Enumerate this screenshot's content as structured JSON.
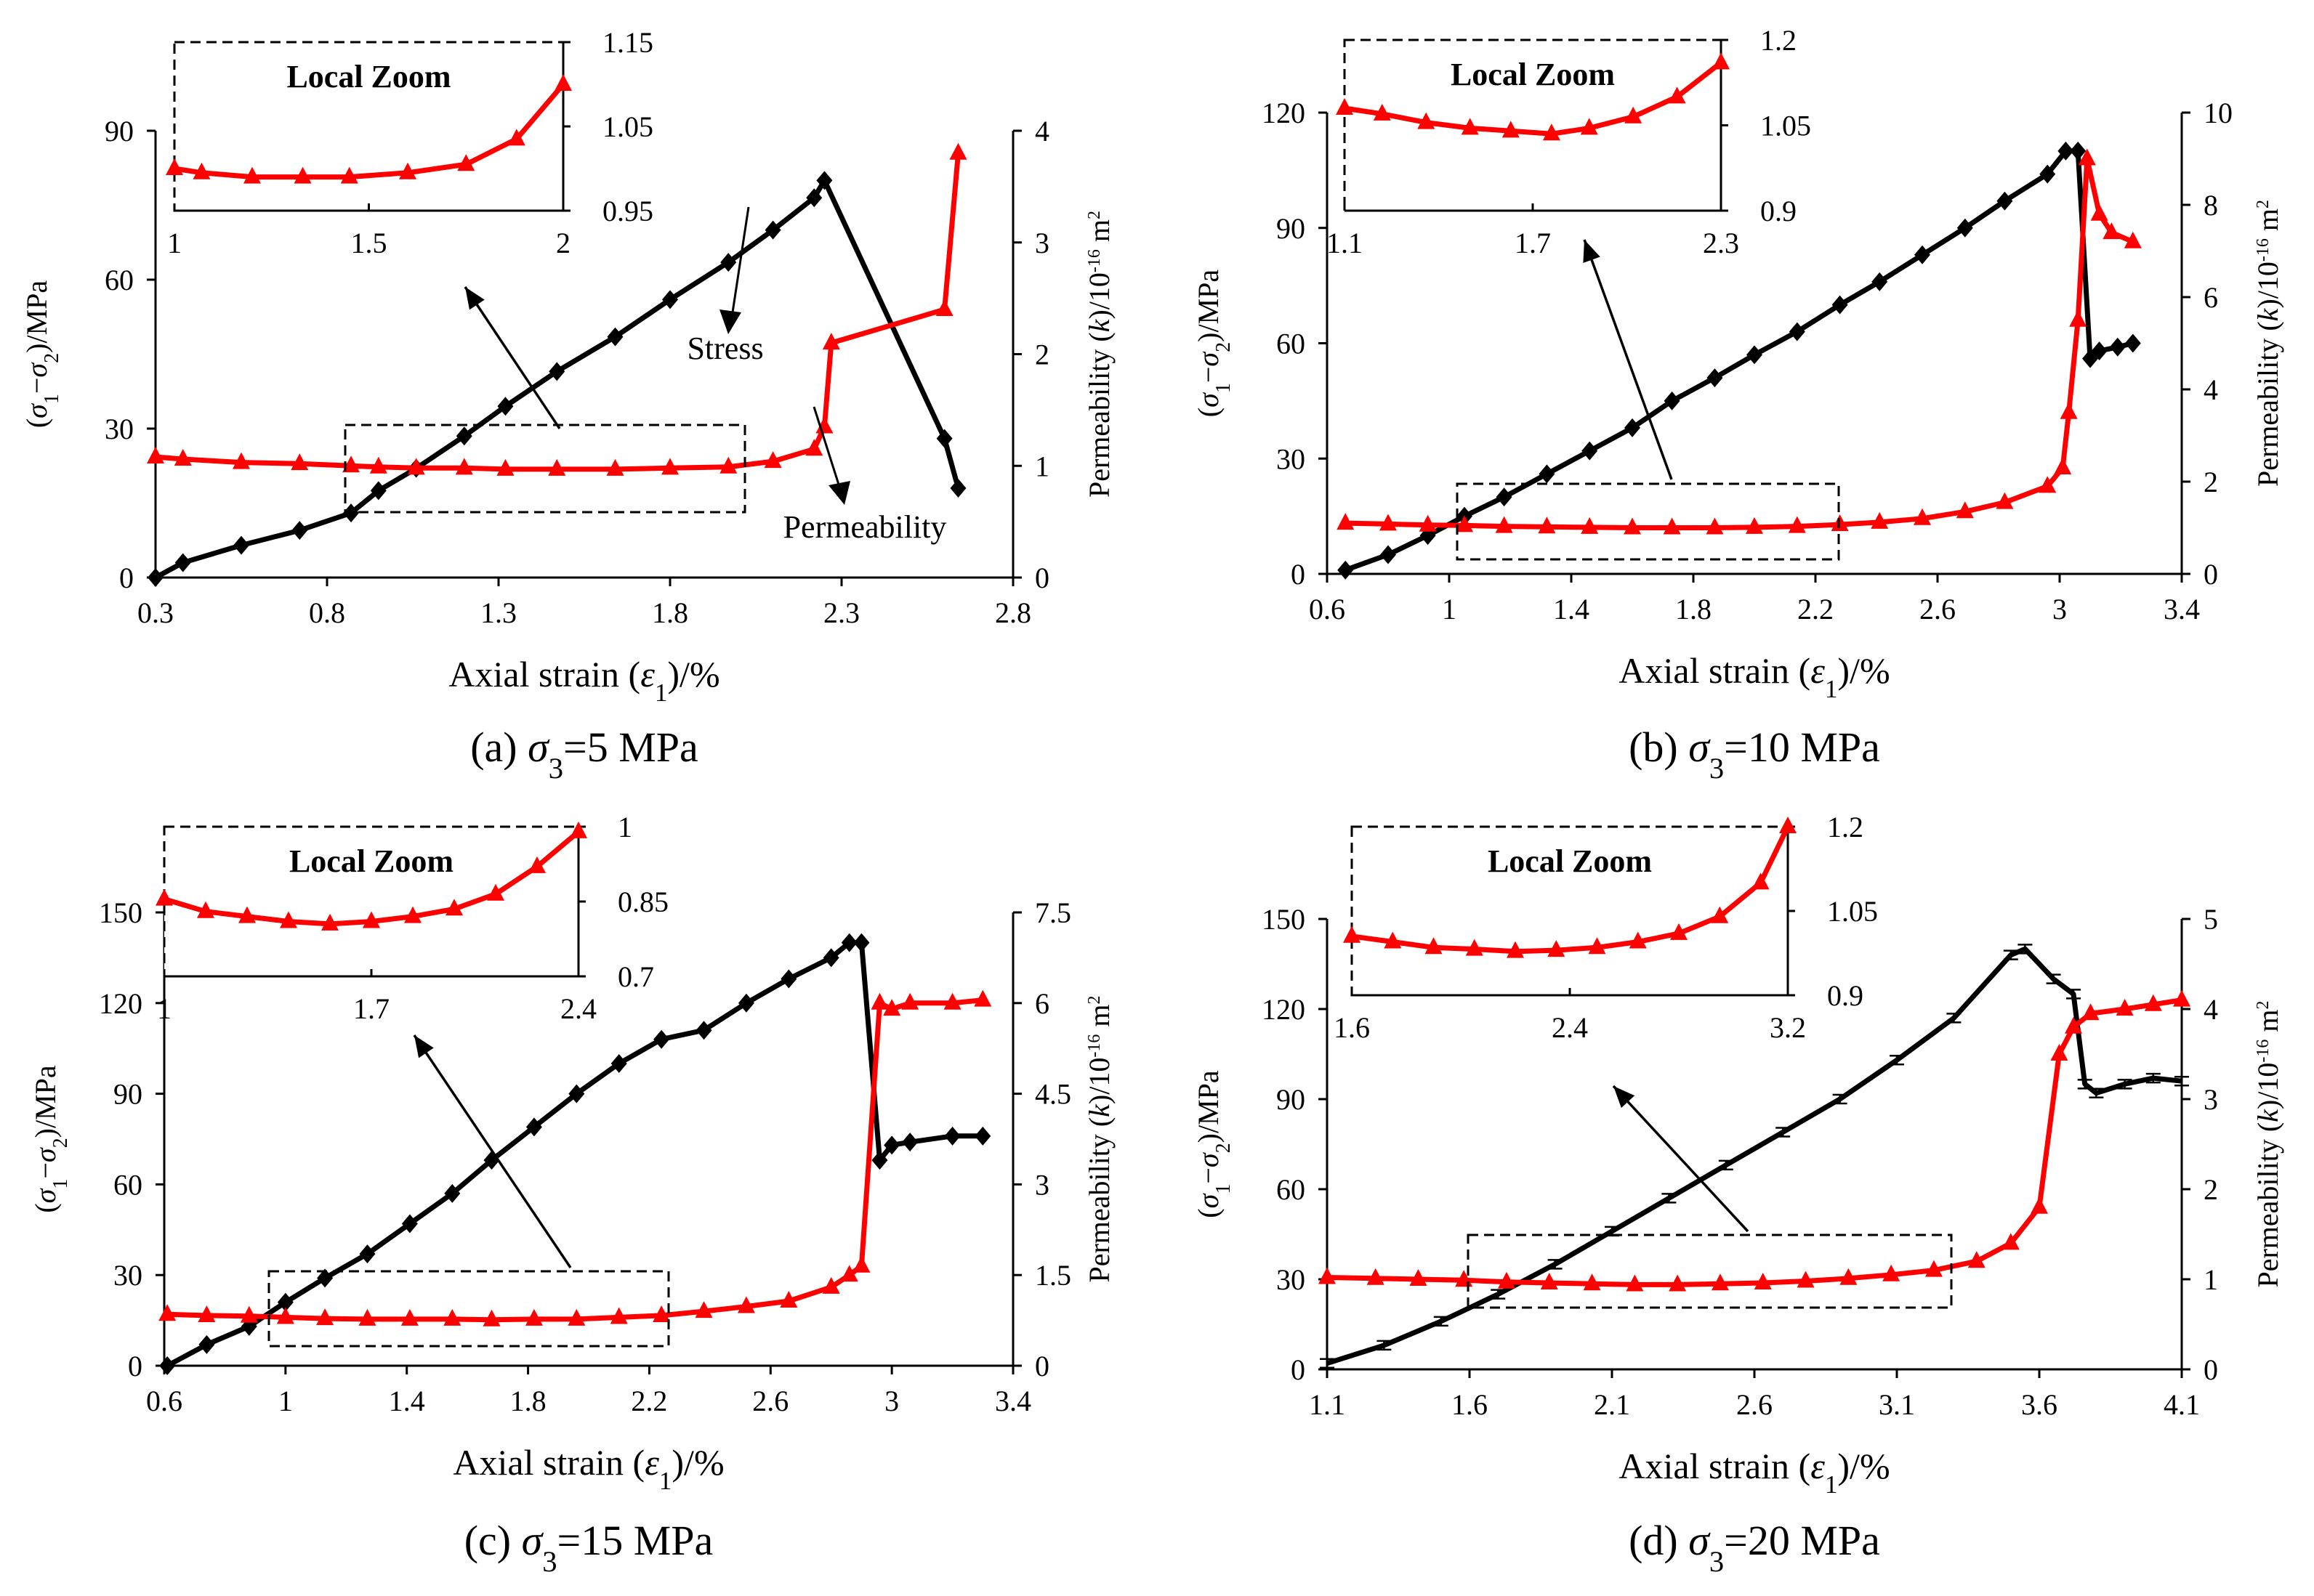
{
  "colors": {
    "stress": "#000000",
    "permeability": "#ff0000",
    "axis": "#000000"
  },
  "common": {
    "xlabel": "Axial strain (ε1)/%",
    "ylabel_left": "(σ1−σ2)/MPa",
    "ylabel_right": "Permeability (k)/10-16 m2",
    "zoom_title": "Local Zoom"
  },
  "chart_data": [
    {
      "id": "a",
      "type": "line",
      "caption": "(a) σ3=5 MPa",
      "xlim": [
        0.3,
        2.8
      ],
      "xticks": [
        "0.3",
        "0.8",
        "1.3",
        "1.8",
        "2.3",
        "2.8"
      ],
      "ylim": [
        0,
        90
      ],
      "yticks": [
        "0",
        "30",
        "60",
        "90"
      ],
      "y2lim": [
        0,
        4
      ],
      "y2ticks": [
        "0",
        "1",
        "2",
        "3",
        "4"
      ],
      "annotations": [
        "Stress",
        "Permeability"
      ],
      "series": [
        {
          "name": "Stress",
          "axis": "left",
          "marker": "diamond",
          "x": [
            0.3,
            0.38,
            0.55,
            0.72,
            0.87,
            0.95,
            1.06,
            1.2,
            1.32,
            1.47,
            1.64,
            1.8,
            1.97,
            2.1,
            2.22,
            2.25,
            2.6,
            2.64
          ],
          "y": [
            0,
            3,
            6.5,
            9.5,
            13,
            17.5,
            22,
            28.5,
            34.5,
            41.5,
            48.5,
            56,
            63.5,
            70,
            76.5,
            80,
            28,
            18
          ]
        },
        {
          "name": "Permeability",
          "axis": "right",
          "marker": "triangle",
          "x": [
            0.3,
            0.38,
            0.55,
            0.72,
            0.87,
            0.95,
            1.06,
            1.2,
            1.32,
            1.47,
            1.64,
            1.8,
            1.97,
            2.1,
            2.22,
            2.25,
            2.27,
            2.6,
            2.64
          ],
          "y": [
            1.08,
            1.06,
            1.03,
            1.02,
            1.0,
            0.99,
            0.98,
            0.98,
            0.97,
            0.97,
            0.97,
            0.98,
            0.99,
            1.04,
            1.15,
            1.35,
            2.1,
            2.4,
            3.8
          ]
        }
      ],
      "zoom": {
        "xlim": [
          1,
          2
        ],
        "xticks": [
          "1",
          "1.5",
          "2"
        ],
        "ylim": [
          0.95,
          1.15
        ],
        "yticks": [
          "0.95",
          "1.05",
          "1.15"
        ],
        "x": [
          1,
          1.07,
          1.2,
          1.33,
          1.45,
          1.6,
          1.75,
          1.88,
          2
        ],
        "y": [
          1.0,
          0.995,
          0.99,
          0.99,
          0.99,
          0.995,
          1.005,
          1.035,
          1.1
        ]
      }
    },
    {
      "id": "b",
      "type": "line",
      "caption": "(b) σ3=10 MPa",
      "xlim": [
        0.6,
        3.4
      ],
      "xticks": [
        "0.6",
        "1",
        "1.4",
        "1.8",
        "2.2",
        "2.6",
        "3",
        "3.4"
      ],
      "ylim": [
        0,
        120
      ],
      "yticks": [
        "0",
        "30",
        "60",
        "90",
        "120"
      ],
      "y2lim": [
        0,
        10
      ],
      "y2ticks": [
        "0",
        "2",
        "4",
        "6",
        "8",
        "10"
      ],
      "series": [
        {
          "name": "Stress",
          "axis": "left",
          "marker": "diamond",
          "x": [
            0.66,
            0.8,
            0.93,
            1.05,
            1.18,
            1.32,
            1.46,
            1.6,
            1.73,
            1.87,
            2.0,
            2.14,
            2.28,
            2.41,
            2.55,
            2.69,
            2.82,
            2.96,
            3.02,
            3.06,
            3.1,
            3.13,
            3.19,
            3.24
          ],
          "y": [
            1,
            5,
            10,
            15,
            20,
            26,
            32,
            38,
            45,
            51,
            57,
            63,
            70,
            76,
            83,
            90,
            97,
            104,
            110,
            110,
            56,
            58,
            59,
            60
          ]
        },
        {
          "name": "Permeability",
          "axis": "right",
          "marker": "triangle",
          "x": [
            0.66,
            0.8,
            0.93,
            1.05,
            1.18,
            1.32,
            1.46,
            1.6,
            1.73,
            1.87,
            2.0,
            2.14,
            2.28,
            2.41,
            2.55,
            2.69,
            2.82,
            2.96,
            3.01,
            3.03,
            3.06,
            3.09,
            3.13,
            3.17,
            3.24
          ],
          "y": [
            1.1,
            1.08,
            1.06,
            1.05,
            1.03,
            1.02,
            1.01,
            1.0,
            1.0,
            1.0,
            1.01,
            1.03,
            1.07,
            1.12,
            1.2,
            1.35,
            1.55,
            1.9,
            2.3,
            3.5,
            5.5,
            9.0,
            7.8,
            7.4,
            7.2
          ]
        }
      ],
      "zoom": {
        "xlim": [
          1.1,
          2.3
        ],
        "xticks": [
          "1.1",
          "1.7",
          "2.3"
        ],
        "ylim": [
          0.9,
          1.2
        ],
        "yticks": [
          "0.9",
          "1.05",
          "1.2"
        ],
        "x": [
          1.1,
          1.22,
          1.36,
          1.5,
          1.63,
          1.76,
          1.88,
          2.02,
          2.16,
          2.3
        ],
        "y": [
          1.08,
          1.07,
          1.055,
          1.045,
          1.04,
          1.035,
          1.045,
          1.065,
          1.1,
          1.16
        ]
      }
    },
    {
      "id": "c",
      "type": "line",
      "caption": "(c) σ3=15 MPa",
      "xlim": [
        0.6,
        3.4
      ],
      "xticks": [
        "0.6",
        "1",
        "1.4",
        "1.8",
        "2.2",
        "2.6",
        "3",
        "3.4"
      ],
      "ylim": [
        0,
        150
      ],
      "yticks": [
        "0",
        "30",
        "60",
        "90",
        "120",
        "150"
      ],
      "y2lim": [
        0,
        7.5
      ],
      "y2ticks": [
        "0",
        "1.5",
        "3",
        "4.5",
        "6",
        "7.5"
      ],
      "series": [
        {
          "name": "Stress",
          "axis": "left",
          "marker": "diamond",
          "x": [
            0.61,
            0.74,
            0.88,
            1.0,
            1.13,
            1.27,
            1.41,
            1.55,
            1.68,
            1.82,
            1.96,
            2.1,
            2.24,
            2.38,
            2.52,
            2.66,
            2.8,
            2.86,
            2.9,
            2.96,
            3.0,
            3.06,
            3.2,
            3.3
          ],
          "y": [
            0,
            7,
            13,
            21,
            29,
            37,
            47,
            57,
            68,
            79,
            90,
            100,
            108,
            111,
            120,
            128,
            135,
            140,
            140,
            68,
            73,
            74,
            76,
            76
          ]
        },
        {
          "name": "Permeability",
          "axis": "right",
          "marker": "triangle",
          "x": [
            0.61,
            0.74,
            0.88,
            1.0,
            1.13,
            1.27,
            1.41,
            1.55,
            1.68,
            1.82,
            1.96,
            2.1,
            2.24,
            2.38,
            2.52,
            2.66,
            2.8,
            2.86,
            2.9,
            2.96,
            3.0,
            3.06,
            3.2,
            3.3
          ],
          "y": [
            0.85,
            0.83,
            0.82,
            0.8,
            0.78,
            0.77,
            0.77,
            0.77,
            0.76,
            0.77,
            0.77,
            0.8,
            0.83,
            0.9,
            0.98,
            1.07,
            1.3,
            1.5,
            1.65,
            6.0,
            5.9,
            6.0,
            6.0,
            6.05
          ]
        }
      ],
      "zoom": {
        "xlim": [
          1,
          2.4
        ],
        "xticks": [
          "1",
          "1.7",
          "2.4"
        ],
        "ylim": [
          0.7,
          1.0
        ],
        "yticks": [
          "0.7",
          "0.85",
          "1"
        ],
        "x": [
          1,
          1.14,
          1.28,
          1.42,
          1.56,
          1.7,
          1.84,
          1.98,
          2.12,
          2.26,
          2.4
        ],
        "y": [
          0.855,
          0.83,
          0.82,
          0.81,
          0.805,
          0.81,
          0.82,
          0.835,
          0.865,
          0.92,
          0.99
        ]
      }
    },
    {
      "id": "d",
      "type": "line",
      "caption": "(d) σ3=20 MPa",
      "xlim": [
        1.1,
        4.1
      ],
      "xticks": [
        "1.1",
        "1.6",
        "2.1",
        "2.6",
        "3.1",
        "3.6",
        "4.1"
      ],
      "ylim": [
        0,
        150
      ],
      "yticks": [
        "0",
        "30",
        "60",
        "90",
        "120",
        "150"
      ],
      "y2lim": [
        0,
        5
      ],
      "y2ticks": [
        "0",
        "1",
        "2",
        "3",
        "4",
        "5"
      ],
      "series": [
        {
          "name": "Stress",
          "axis": "left",
          "marker": "errorbar",
          "x": [
            1.1,
            1.3,
            1.5,
            1.7,
            1.9,
            2.1,
            2.3,
            2.5,
            2.7,
            2.9,
            3.1,
            3.3,
            3.5,
            3.55,
            3.65,
            3.72,
            3.76,
            3.8,
            3.9,
            4.0,
            4.1
          ],
          "y": [
            2,
            8,
            16,
            25,
            35,
            46,
            57,
            68,
            79,
            90,
            103,
            117,
            138,
            140,
            130,
            125,
            95,
            92,
            95,
            97,
            96
          ]
        },
        {
          "name": "Permeability",
          "axis": "right",
          "marker": "triangle",
          "x": [
            1.1,
            1.27,
            1.42,
            1.58,
            1.73,
            1.88,
            2.03,
            2.18,
            2.33,
            2.48,
            2.63,
            2.78,
            2.93,
            3.08,
            3.23,
            3.38,
            3.5,
            3.6,
            3.67,
            3.72,
            3.78,
            3.9,
            4.0,
            4.1
          ],
          "y": [
            1.02,
            1.01,
            1.0,
            0.99,
            0.97,
            0.96,
            0.95,
            0.94,
            0.94,
            0.95,
            0.96,
            0.98,
            1.01,
            1.05,
            1.1,
            1.2,
            1.4,
            1.8,
            3.5,
            3.8,
            3.95,
            4.0,
            4.05,
            4.1
          ]
        }
      ],
      "zoom": {
        "xlim": [
          1.6,
          3.2
        ],
        "xticks": [
          "1.6",
          "2.4",
          "3.2"
        ],
        "ylim": [
          0.9,
          1.2
        ],
        "yticks": [
          "0.9",
          "1.05",
          "1.2"
        ],
        "x": [
          1.6,
          1.75,
          1.9,
          2.05,
          2.2,
          2.35,
          2.5,
          2.65,
          2.8,
          2.95,
          3.1,
          3.2
        ],
        "y": [
          1.005,
          0.995,
          0.985,
          0.982,
          0.978,
          0.98,
          0.985,
          0.995,
          1.01,
          1.04,
          1.1,
          1.2
        ]
      }
    }
  ]
}
